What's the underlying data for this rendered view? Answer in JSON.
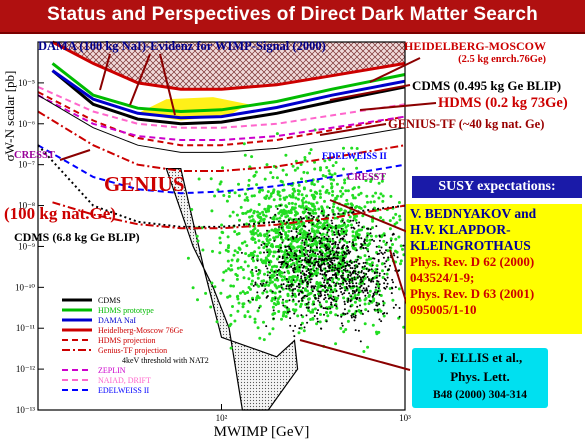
{
  "title": "Status and Perspectives of Direct Dark Matter Search",
  "colors": {
    "title_bg": "#b01010",
    "title_text": "#ffffff",
    "accent_red": "#cc0000",
    "dama_blue": "#000099",
    "susy_box": "#1a1aa8",
    "yellow_box": "#ffff00",
    "cyan_box": "#00e0f0",
    "green_points": "#22dd22",
    "black_points": "#000000"
  },
  "annotations": {
    "dama": "DAMA (100 kg NaI)-Evidenz for WIMP-Signal (2000)",
    "hm_line1": "HEIDELBERG-MOSCOW",
    "hm_line2": "(2.5 kg enrch.76Ge)",
    "cdms_blip": "CDMS (0.495 kg Ge BLIP)",
    "hdms": "HDMS (0.2 kg 73Ge)",
    "genius_tf": "GENIUS-TF (~40 kg nat. Ge)",
    "cresst_left": "CRESST",
    "genius": "GENIUS",
    "genius_sub": "(100 kg nat.Ge)",
    "edelweiss": "EDELWEISS II",
    "cresst_right": "CRESST",
    "cdms_68": "CDMS (6.8 kg Ge BLIP)"
  },
  "susy": "SUSY expectations:",
  "bednyakov": {
    "authors1": "V. BEDNYAKOV and",
    "authors2": "H.V. KLAPDOR-",
    "authors3": "KLEINGROTHAUS",
    "ref1": "Phys. Rev. D 62 (2000)",
    "ref2": "043524/1-9;",
    "ref3": "Phys. Rev. D 63 (2001)",
    "ref4": "095005/1-10"
  },
  "ellis": {
    "line1": "J. ELLIS et al.,",
    "line2": "Phys. Lett.",
    "line3": "B48 (2000) 304-314"
  },
  "chart_data": {
    "type": "scatter",
    "xlabel": "MWIMP [GeV]",
    "ylabel": "σW-N scalar [pb]",
    "x_scale": "log",
    "y_scale": "log",
    "xlim": [
      10,
      1000
    ],
    "ylim": [
      1e-13,
      0.0001
    ],
    "x_ticks": [
      {
        "value": 100,
        "label": "10²"
      },
      {
        "value": 1000,
        "label": "10³"
      }
    ],
    "y_ticks": [
      {
        "value": 1e-05,
        "label": "10⁻⁵"
      },
      {
        "value": 1e-06,
        "label": "10⁻⁶"
      },
      {
        "value": 1e-07,
        "label": "10⁻⁷"
      },
      {
        "value": 1e-08,
        "label": "10⁻⁸"
      },
      {
        "value": 1e-09,
        "label": "10⁻⁹"
      },
      {
        "value": 1e-10,
        "label": "10⁻¹⁰"
      },
      {
        "value": 1e-11,
        "label": "10⁻¹¹"
      },
      {
        "value": 1e-12,
        "label": "10⁻¹²"
      },
      {
        "value": 1e-13,
        "label": "10⁻¹³"
      }
    ],
    "series": [
      {
        "name": "CDMS",
        "color": "#000000",
        "style": "solid",
        "x": [
          12,
          20,
          35,
          60,
          100,
          200,
          400,
          1000
        ],
        "y": [
          2e-05,
          3e-06,
          1.3e-06,
          1e-06,
          1.1e-06,
          1.8e-06,
          3.5e-06,
          8e-06
        ]
      },
      {
        "name": "HDMS prototype",
        "color": "#00bb00",
        "style": "solid",
        "x": [
          12,
          20,
          35,
          60,
          100,
          200,
          400,
          1000
        ],
        "y": [
          3e-05,
          5e-06,
          2.4e-06,
          2e-06,
          2.2e-06,
          3.5e-06,
          7e-06,
          1.6e-05
        ]
      },
      {
        "name": "DAMA NaI",
        "color": "#0000cc",
        "style": "solid",
        "x": [
          12,
          20,
          35,
          60,
          100,
          200,
          400,
          1000
        ],
        "y": [
          2e-05,
          4e-06,
          1.8e-06,
          1.4e-06,
          1.5e-06,
          2.5e-06,
          5e-06,
          1.1e-05
        ]
      },
      {
        "name": "Heidelberg-Moscow 76Ge",
        "color": "#cc0000",
        "style": "solid",
        "x": [
          12,
          20,
          35,
          60,
          100,
          200,
          400,
          1000
        ],
        "y": [
          0.0001,
          3e-05,
          1e-05,
          7e-06,
          7e-06,
          9e-06,
          1.5e-05,
          3e-05
        ]
      },
      {
        "name": "HDMS projection",
        "color": "#cc0000",
        "style": "dashed",
        "x": [
          10,
          20,
          35,
          60,
          100,
          200,
          400,
          1000
        ],
        "y": [
          6e-06,
          1.2e-06,
          4.5e-07,
          3e-07,
          3e-07,
          4e-07,
          7e-07,
          1.5e-06
        ]
      },
      {
        "name": "Genius-TF projection",
        "color": "#cc0000",
        "style": "dashdot",
        "x": [
          10,
          20,
          35,
          60,
          100,
          200,
          400,
          1000
        ],
        "y": [
          2e-06,
          3e-07,
          1e-07,
          7e-08,
          7e-08,
          9e-08,
          1.5e-07,
          3e-07
        ]
      },
      {
        "name": "ZEPLIN",
        "color": "#cc00cc",
        "style": "dashed",
        "x": [
          10,
          20,
          35,
          60,
          100,
          200,
          400,
          1000
        ],
        "y": [
          5e-06,
          1e-06,
          5e-07,
          4e-07,
          4e-07,
          5e-07,
          8e-07,
          1.5e-06
        ]
      },
      {
        "name": "NAIAD, DRIFT",
        "color": "#ff66cc",
        "style": "dashed",
        "x": [
          10,
          20,
          35,
          60,
          100,
          200,
          400,
          1000
        ],
        "y": [
          8e-06,
          2e-06,
          1e-06,
          8e-07,
          8e-07,
          1e-06,
          1.6e-06,
          3e-06
        ]
      },
      {
        "name": "EDELWEISS II",
        "color": "#0000ff",
        "style": "dashed",
        "x": [
          10,
          20,
          35,
          60,
          100,
          200,
          400,
          1000
        ],
        "y": [
          3e-07,
          5e-08,
          2.5e-08,
          2e-08,
          2.2e-08,
          3e-08,
          5e-08,
          1e-07
        ]
      },
      {
        "name": "CDMS (6.8 kg Ge BLIP)",
        "color": "#000000",
        "style": "dotted",
        "x": [
          10,
          20,
          35,
          60,
          100,
          200,
          400,
          1000
        ],
        "y": [
          3e-07,
          1e-08,
          4e-09,
          3e-09,
          3e-09,
          4e-09,
          6e-09,
          1e-08
        ]
      },
      {
        "name": "GENIUS (100 kg nat.Ge)",
        "color": "#cc0000",
        "style": "dashdot",
        "x": [
          12,
          20,
          35,
          60,
          100,
          200,
          400,
          1000
        ],
        "y": [
          1.2e-08,
          6e-09,
          3.5e-09,
          2.8e-09,
          2.8e-09,
          3.4e-09,
          5e-09,
          1e-08
        ]
      },
      {
        "name": "4keV threshold with NAT2",
        "color": "#000000",
        "style": "thin",
        "x": [
          10,
          20,
          35,
          60,
          100,
          200,
          400,
          1000
        ],
        "y": [
          5e-06,
          8e-07,
          3e-07,
          2e-07,
          2e-07,
          2.5e-07,
          4e-07,
          8e-07
        ]
      }
    ],
    "regions": [
      {
        "name": "DAMA allowed region",
        "color": "#ffee00",
        "polygon_xy": [
          [
            35,
            1.8e-06
          ],
          [
            60,
            1.2e-06
          ],
          [
            110,
            1.6e-06
          ],
          [
            140,
            3e-06
          ],
          [
            90,
            4.5e-06
          ],
          [
            50,
            4e-06
          ]
        ]
      },
      {
        "name": "Heidelberg-Moscow excluded",
        "color": "#cc8888",
        "polygon_xy": [
          [
            12,
            0.0001
          ],
          [
            1000,
            0.0001
          ],
          [
            1000,
            3e-05
          ],
          [
            400,
            1.5e-05
          ],
          [
            200,
            9e-06
          ],
          [
            100,
            7e-06
          ],
          [
            60,
            7e-06
          ],
          [
            35,
            1e-05
          ],
          [
            20,
            3e-05
          ]
        ]
      },
      {
        "name": "Ellis et al. region",
        "color": "#aaaaaa",
        "polygon_xy": [
          [
            50,
            8e-08
          ],
          [
            60,
            8e-08
          ],
          [
            80,
            3e-10
          ],
          [
            100,
            6e-12
          ],
          [
            200,
            2e-12
          ],
          [
            250,
            5e-12
          ],
          [
            260,
            1e-12
          ],
          [
            180,
            1e-13
          ],
          [
            130,
            1e-13
          ],
          [
            110,
            1e-11
          ],
          [
            90,
            1e-10
          ],
          [
            70,
            1e-09
          ]
        ]
      }
    ],
    "scatter_clouds": [
      {
        "name": "SUSY (Bednyakov, Klapdor-Kleingrothaus) green",
        "color": "#22dd22",
        "x_range": [
          30,
          1000
        ],
        "y_range": [
          1e-13,
          3e-06
        ],
        "count": 1500,
        "peak_x": 300,
        "peak_y": 1e-09
      },
      {
        "name": "SUSY black",
        "color": "#000000",
        "x_range": [
          70,
          1000
        ],
        "y_range": [
          1e-13,
          1e-08
        ],
        "count": 900,
        "peak_x": 400,
        "peak_y": 3e-10
      }
    ],
    "legend": {
      "placement": "bottom-left",
      "entries": [
        {
          "label": "CDMS",
          "color": "#000000",
          "style": "solid"
        },
        {
          "label": "HDMS prototype",
          "color": "#00bb00",
          "style": "solid"
        },
        {
          "label": "DAMA NaI",
          "color": "#0000cc",
          "style": "solid"
        },
        {
          "label": "Heidelberg-Moscow 76Ge",
          "color": "#cc0000",
          "style": "solid"
        },
        {
          "label": "HDMS projection",
          "color": "#cc0000",
          "style": "dashed"
        },
        {
          "label": "Genius-TF projection",
          "color": "#cc0000",
          "style": "dashdot"
        },
        {
          "label": "4keV threshold with NAT2",
          "color": "#000000",
          "style": "none"
        },
        {
          "label": "ZEPLIN",
          "color": "#cc00cc",
          "style": "dashed"
        },
        {
          "label": "NAIAD, DRIFT",
          "color": "#ff66cc",
          "style": "dashed"
        },
        {
          "label": "EDELWEISS II",
          "color": "#0000ff",
          "style": "dashed"
        }
      ]
    }
  }
}
